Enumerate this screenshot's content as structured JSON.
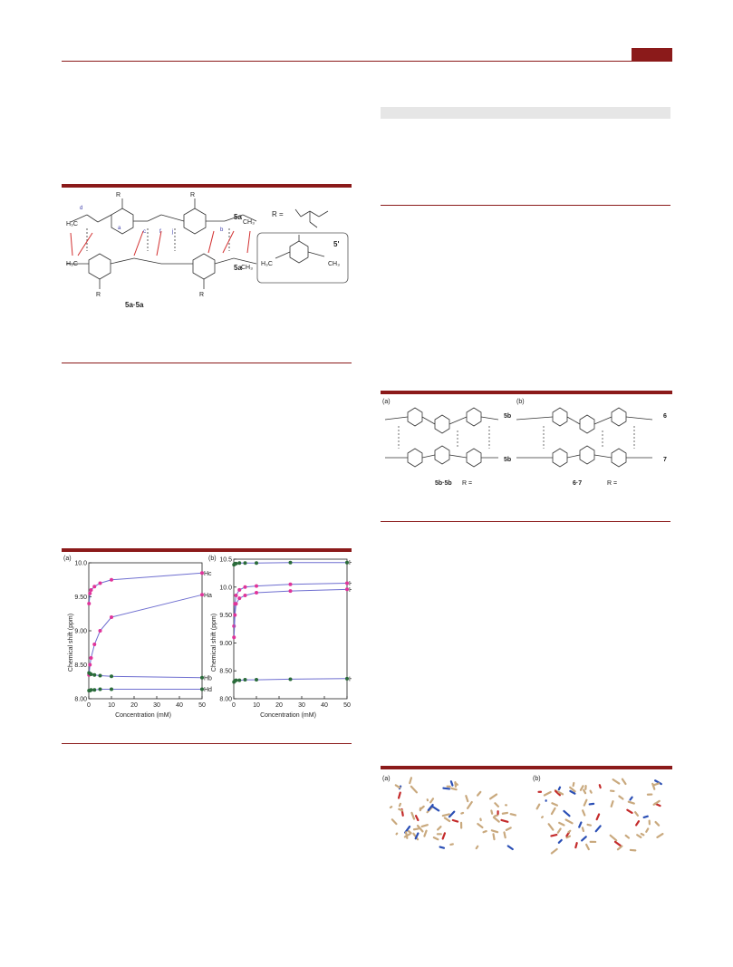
{
  "page": {
    "accent": "#8b1a1a"
  },
  "fig1": {
    "label_5a_top": "5a",
    "label_5a_bottom": "5a",
    "label_dimer": "5a·5a",
    "r_label": "R =",
    "label_5prime": "5'",
    "atoms": [
      "O",
      "R",
      "H",
      "N",
      "H₃C",
      "CH₃",
      "O"
    ]
  },
  "fig2": {
    "panel_a": "(a)",
    "panel_b": "(b)",
    "label_5b": "5b",
    "label_5b2": "5b",
    "label_dimer": "5b·5b",
    "label_6": "6",
    "label_7": "7",
    "label_67": "6·7",
    "r_a": "R =",
    "r_b": "R ="
  },
  "fig3": {
    "panel_a": "(a)",
    "panel_b": "(b)",
    "ylabel": "Chemical shift (ppm)",
    "xlabel": "Concentration (mM)"
  },
  "fig4": {
    "panel_a": "(a)",
    "panel_b": "(b)"
  },
  "chart_data": [
    {
      "type": "scatter",
      "panel": "(a)",
      "xlabel": "Concentration (mM)",
      "ylabel": "Chemical shift (ppm)",
      "xlim": [
        0,
        50
      ],
      "ylim": [
        8.0,
        10.0
      ],
      "xticks": [
        "0",
        "10",
        "20",
        "30",
        "40",
        "50"
      ],
      "yticks": [
        "8.00",
        "8.50",
        "9.00",
        "9.50",
        "10.0"
      ],
      "series": [
        {
          "name": "Hc",
          "color": "#e0349a",
          "x": [
            0.1,
            0.5,
            1,
            2.5,
            5,
            10,
            50
          ],
          "y": [
            9.4,
            9.55,
            9.6,
            9.65,
            9.7,
            9.75,
            9.85
          ]
        },
        {
          "name": "Ha",
          "color": "#e0349a",
          "x": [
            0.1,
            0.5,
            1,
            2.5,
            5,
            10,
            50
          ],
          "y": [
            8.35,
            8.5,
            8.6,
            8.8,
            9.0,
            9.2,
            9.53
          ]
        },
        {
          "name": "Hb",
          "color": "#2a6b3a",
          "x": [
            0.1,
            0.5,
            1,
            2.5,
            5,
            10,
            50
          ],
          "y": [
            8.38,
            8.37,
            8.36,
            8.35,
            8.34,
            8.33,
            8.31
          ]
        },
        {
          "name": "Hd",
          "color": "#2a6b3a",
          "x": [
            0.1,
            0.5,
            1,
            2.5,
            5,
            10,
            50
          ],
          "y": [
            8.12,
            8.12,
            8.13,
            8.13,
            8.14,
            8.14,
            8.14
          ]
        }
      ]
    },
    {
      "type": "scatter",
      "panel": "(b)",
      "xlabel": "Concentration (mM)",
      "ylabel": "Chemical shift (ppm)",
      "xlim": [
        0,
        50
      ],
      "ylim": [
        8.0,
        10.5
      ],
      "xticks": [
        "0",
        "10",
        "20",
        "30",
        "40",
        "50"
      ],
      "yticks": [
        "8.00",
        "8.50",
        "9.00",
        "9.50",
        "10.0",
        "10.5"
      ],
      "series": [
        {
          "name": "Hb",
          "color": "#2a6b3a",
          "x": [
            0.1,
            0.5,
            1,
            2.5,
            5,
            10,
            25,
            50
          ],
          "y": [
            10.4,
            10.42,
            10.42,
            10.43,
            10.43,
            10.43,
            10.44,
            10.44
          ]
        },
        {
          "name": "Hc",
          "color": "#e0349a",
          "x": [
            0.1,
            0.5,
            1,
            2.5,
            5,
            10,
            25,
            50
          ],
          "y": [
            9.3,
            9.7,
            9.85,
            9.95,
            10.0,
            10.02,
            10.05,
            10.07
          ]
        },
        {
          "name": "Ha",
          "color": "#e0349a",
          "x": [
            0.1,
            0.5,
            1,
            2.5,
            5,
            10,
            25,
            50
          ],
          "y": [
            9.1,
            9.5,
            9.7,
            9.8,
            9.85,
            9.9,
            9.93,
            9.96
          ]
        },
        {
          "name": "Hd",
          "color": "#2a6b3a",
          "x": [
            0.1,
            0.5,
            1,
            2.5,
            5,
            10,
            25,
            50
          ],
          "y": [
            8.3,
            8.32,
            8.33,
            8.33,
            8.34,
            8.34,
            8.35,
            8.36
          ]
        }
      ]
    }
  ]
}
